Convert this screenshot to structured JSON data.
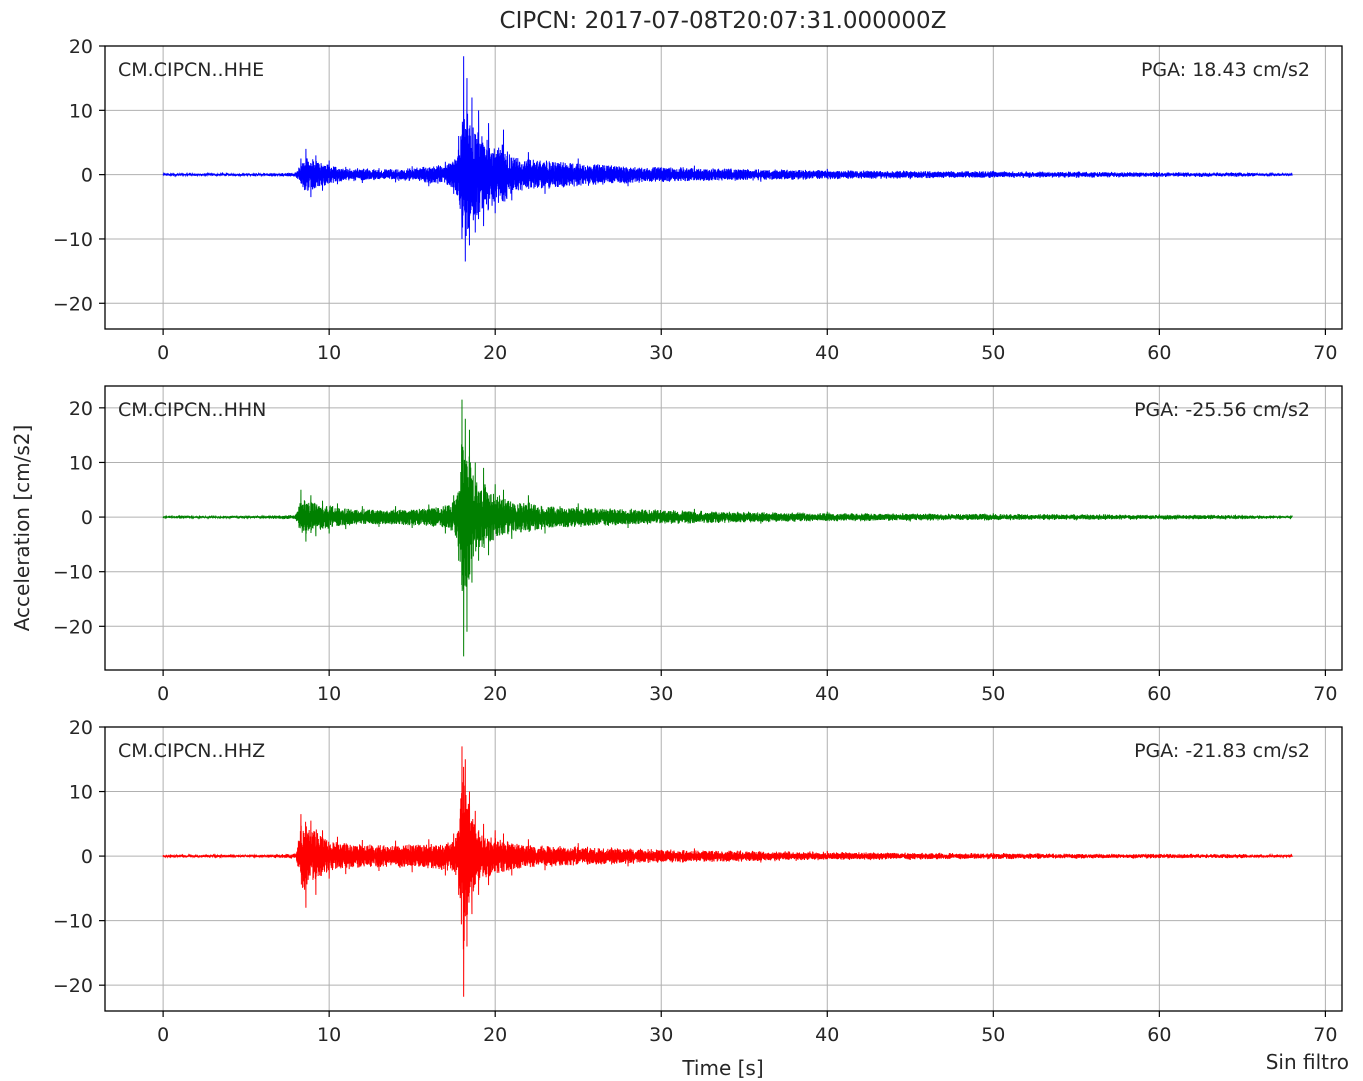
{
  "figure": {
    "title": "CIPCN: 2017-07-08T20:07:31.000000Z",
    "ylabel": "Acceleration [cm/s2]",
    "xlabel": "Time [s]",
    "footer_note": "Sin filtro"
  },
  "chart_data": [
    {
      "type": "line",
      "channel": "CM.CIPCN..HHE",
      "pga_label": "PGA: 18.43 cm/s2",
      "pga": 18.43,
      "color": "#0000ff",
      "xlim": [
        -3.5,
        71
      ],
      "ylim": [
        -24,
        20
      ],
      "xticks": [
        0,
        10,
        20,
        30,
        40,
        50,
        60,
        70
      ],
      "yticks": [
        20,
        10,
        0,
        -10,
        -20
      ],
      "ytick_labels": [
        "20",
        "10",
        "0",
        "−10",
        "−20"
      ],
      "xtick_labels": [
        "0",
        "10",
        "20",
        "30",
        "40",
        "50",
        "60",
        "70"
      ],
      "grid": true,
      "series": [
        {
          "x": [
            0,
            5,
            8.0,
            8.3,
            8.6,
            8.9,
            9.2,
            9.6,
            10.0,
            10.5,
            11,
            12,
            13,
            14,
            15,
            16,
            17,
            17.5,
            17.8,
            18.0,
            18.1,
            18.2,
            18.3,
            18.45,
            18.6,
            18.8,
            19.0,
            19.3,
            19.6,
            20.0,
            20.5,
            21,
            22,
            23,
            25,
            28,
            32,
            36,
            40,
            45,
            50,
            55,
            60,
            65,
            68
          ],
          "y": [
            0,
            0,
            0.3,
            2.5,
            4,
            -3.5,
            3,
            -2.5,
            2.2,
            -1.5,
            1.2,
            -1.3,
            1,
            -1.2,
            1.3,
            -1.8,
            2,
            -3,
            6,
            -10,
            18.4,
            -13.5,
            15,
            -11,
            12,
            -9,
            10,
            -8,
            8,
            -6,
            7,
            -4,
            3.5,
            -3,
            2.5,
            -1.8,
            1.4,
            -1.1,
            0.9,
            -0.7,
            0.6,
            -0.5,
            0.4,
            -0.3,
            0
          ]
        }
      ]
    },
    {
      "type": "line",
      "channel": "CM.CIPCN..HHN",
      "pga_label": "PGA: -25.56 cm/s2",
      "pga": -25.56,
      "color": "#008000",
      "xlim": [
        -3.5,
        71
      ],
      "ylim": [
        -28,
        24
      ],
      "xticks": [
        0,
        10,
        20,
        30,
        40,
        50,
        60,
        70
      ],
      "yticks": [
        20,
        10,
        0,
        -10,
        -20
      ],
      "ytick_labels": [
        "20",
        "10",
        "0",
        "−10",
        "−20"
      ],
      "xtick_labels": [
        "0",
        "10",
        "20",
        "30",
        "40",
        "50",
        "60",
        "70"
      ],
      "grid": true,
      "series": [
        {
          "x": [
            0,
            5,
            8.0,
            8.3,
            8.6,
            8.9,
            9.2,
            9.6,
            10.0,
            10.5,
            11,
            12,
            13,
            14,
            15,
            16,
            17,
            17.5,
            17.8,
            18.0,
            18.1,
            18.2,
            18.3,
            18.45,
            18.6,
            18.8,
            19.0,
            19.3,
            19.6,
            20.0,
            20.5,
            21,
            22,
            23,
            25,
            28,
            32,
            36,
            40,
            45,
            50,
            55,
            60,
            65,
            68
          ],
          "y": [
            0,
            0,
            0.5,
            5,
            -4.5,
            4,
            -3.5,
            3,
            -3,
            2.5,
            -2.2,
            2,
            -1.8,
            2,
            -2,
            2.3,
            -3,
            4,
            -8,
            21.5,
            -25.5,
            18,
            -21,
            16,
            -12,
            10,
            -8,
            9,
            -7,
            6,
            5,
            -4,
            4,
            -3,
            2.5,
            -2,
            1.5,
            -1.2,
            1,
            -0.8,
            0.7,
            -0.6,
            0.5,
            -0.4,
            0
          ]
        }
      ]
    },
    {
      "type": "line",
      "channel": "CM.CIPCN..HHZ",
      "pga_label": "PGA: -21.83 cm/s2",
      "pga": -21.83,
      "color": "#ff0000",
      "xlim": [
        -3.5,
        71
      ],
      "ylim": [
        -24,
        20
      ],
      "xticks": [
        0,
        10,
        20,
        30,
        40,
        50,
        60,
        70
      ],
      "yticks": [
        20,
        10,
        0,
        -10,
        -20
      ],
      "ytick_labels": [
        "20",
        "10",
        "0",
        "−10",
        "−20"
      ],
      "xtick_labels": [
        "0",
        "10",
        "20",
        "30",
        "40",
        "50",
        "60",
        "70"
      ],
      "grid": true,
      "series": [
        {
          "x": [
            0,
            5,
            8.0,
            8.3,
            8.6,
            8.9,
            9.2,
            9.6,
            10.0,
            10.5,
            11,
            12,
            13,
            14,
            15,
            16,
            17,
            17.5,
            17.8,
            18.0,
            18.1,
            18.2,
            18.3,
            18.45,
            18.6,
            18.8,
            19.0,
            19.3,
            19.6,
            20.0,
            20.5,
            21,
            22,
            23,
            25,
            28,
            32,
            36,
            40,
            45,
            50,
            55,
            60,
            65,
            68
          ],
          "y": [
            0,
            0,
            0.4,
            6.5,
            -8,
            5.5,
            -6,
            4,
            -3.5,
            3,
            -2.8,
            2.5,
            -2.3,
            2.4,
            -2.5,
            2.6,
            -3,
            3.5,
            -6,
            17,
            -21.8,
            15,
            -14,
            10,
            -9,
            7,
            -6,
            5,
            -4.5,
            4,
            3.5,
            -3,
            2.6,
            -2.2,
            2,
            -1.6,
            1.2,
            -1,
            0.8,
            -0.6,
            0.5,
            -0.4,
            0.35,
            -0.3,
            0
          ]
        }
      ]
    }
  ]
}
